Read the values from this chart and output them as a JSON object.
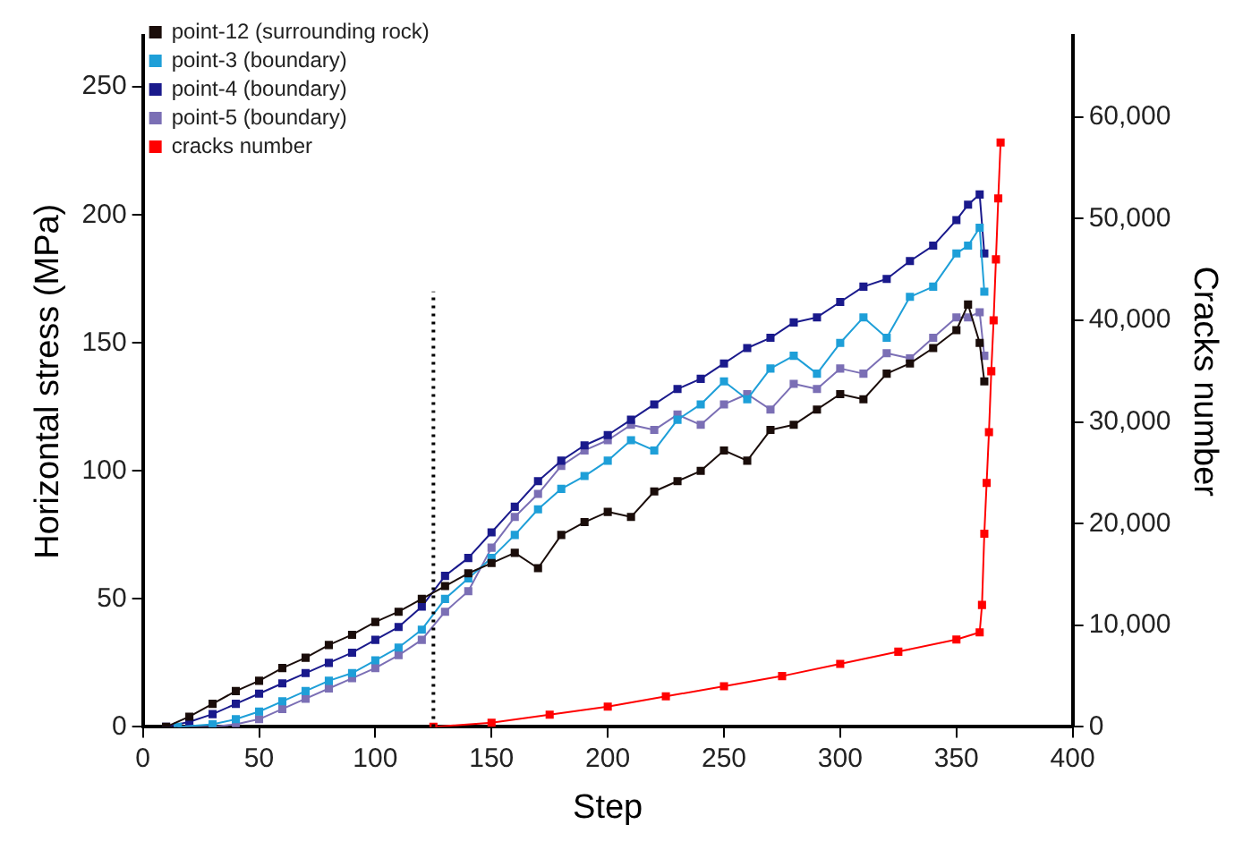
{
  "chart_data": {
    "type": "line",
    "xlabel": "Step",
    "ylabel": "Horizontal stress (MPa)",
    "y2label": "Cracks number",
    "xlim": [
      0,
      400
    ],
    "xticks": [
      0,
      50,
      100,
      150,
      200,
      250,
      300,
      350,
      400
    ],
    "ylim": [
      0,
      270
    ],
    "yticks": [
      0,
      50,
      100,
      150,
      200,
      250
    ],
    "y2lim": [
      0,
      68000
    ],
    "y2ticks": [
      {
        "value": 0,
        "label": "0"
      },
      {
        "value": 10000,
        "label": "10,000"
      },
      {
        "value": 20000,
        "label": "20,000"
      },
      {
        "value": 30000,
        "label": "30,000"
      },
      {
        "value": 40000,
        "label": "40,000"
      },
      {
        "value": 50000,
        "label": "50,000"
      },
      {
        "value": 60000,
        "label": "60,000"
      }
    ],
    "grid": false,
    "legend": "top left",
    "marker": "square",
    "line_style": "solid",
    "ref_lines": [
      {
        "axis": "x",
        "value": 125,
        "line_style": "dotted",
        "color": "#000000"
      }
    ],
    "series": [
      {
        "name": "point-12 (surrounding rock)",
        "color": "#1a0d0a",
        "x": [
          10,
          20,
          30,
          40,
          50,
          60,
          70,
          80,
          90,
          100,
          110,
          120,
          130,
          140,
          150,
          160,
          170,
          180,
          190,
          200,
          210,
          220,
          230,
          240,
          250,
          260,
          270,
          280,
          290,
          300,
          310,
          320,
          330,
          340,
          350,
          355,
          360,
          362
        ],
        "values": [
          0,
          4,
          9,
          14,
          18,
          23,
          27,
          32,
          36,
          41,
          45,
          50,
          55,
          60,
          64,
          68,
          62,
          75,
          80,
          84,
          82,
          92,
          96,
          100,
          108,
          104,
          116,
          118,
          124,
          130,
          128,
          138,
          142,
          148,
          155,
          165,
          150,
          135
        ]
      },
      {
        "name": "point-3 (boundary)",
        "color": "#1e9fd8",
        "x": [
          15,
          30,
          40,
          50,
          60,
          70,
          80,
          90,
          100,
          110,
          120,
          130,
          140,
          150,
          160,
          170,
          180,
          190,
          200,
          210,
          220,
          230,
          240,
          250,
          260,
          270,
          280,
          290,
          300,
          310,
          320,
          330,
          340,
          350,
          355,
          360,
          362
        ],
        "values": [
          0,
          1,
          3,
          6,
          10,
          14,
          18,
          21,
          26,
          31,
          38,
          50,
          58,
          66,
          75,
          85,
          93,
          98,
          104,
          112,
          108,
          120,
          126,
          135,
          128,
          140,
          145,
          138,
          150,
          160,
          152,
          168,
          172,
          185,
          188,
          195,
          170
        ]
      },
      {
        "name": "point-4 (boundary)",
        "color": "#1a1a8c",
        "x": [
          10,
          20,
          30,
          40,
          50,
          60,
          70,
          80,
          90,
          100,
          110,
          120,
          130,
          140,
          150,
          160,
          170,
          180,
          190,
          200,
          210,
          220,
          230,
          240,
          250,
          260,
          270,
          280,
          290,
          300,
          310,
          320,
          330,
          340,
          350,
          355,
          360,
          362
        ],
        "values": [
          0,
          2,
          5,
          9,
          13,
          17,
          21,
          25,
          29,
          34,
          39,
          47,
          59,
          66,
          76,
          86,
          96,
          104,
          110,
          114,
          120,
          126,
          132,
          136,
          142,
          148,
          152,
          158,
          160,
          166,
          172,
          175,
          182,
          188,
          198,
          204,
          208,
          185
        ]
      },
      {
        "name": "point-5 (boundary)",
        "color": "#7b6fb5",
        "x": [
          15,
          30,
          40,
          50,
          60,
          70,
          80,
          90,
          100,
          110,
          120,
          130,
          140,
          150,
          160,
          170,
          180,
          190,
          200,
          210,
          220,
          230,
          240,
          250,
          260,
          270,
          280,
          290,
          300,
          310,
          320,
          330,
          340,
          350,
          355,
          360,
          362
        ],
        "values": [
          0,
          0,
          1,
          3,
          7,
          11,
          15,
          19,
          23,
          28,
          34,
          45,
          53,
          70,
          82,
          91,
          102,
          108,
          112,
          118,
          116,
          122,
          118,
          126,
          130,
          124,
          134,
          132,
          140,
          138,
          146,
          144,
          152,
          160,
          160,
          162,
          145
        ]
      },
      {
        "name": "cracks number",
        "color": "#ff0000",
        "axis": "y2",
        "x": [
          125,
          150,
          175,
          200,
          225,
          250,
          275,
          300,
          325,
          350,
          360,
          361,
          362,
          363,
          364,
          365,
          366,
          367,
          368,
          369
        ],
        "values": [
          0,
          400,
          1200,
          2000,
          3000,
          4000,
          5000,
          6200,
          7400,
          8600,
          9300,
          12000,
          19000,
          24000,
          29000,
          35000,
          40000,
          46000,
          52000,
          57500
        ]
      }
    ]
  }
}
